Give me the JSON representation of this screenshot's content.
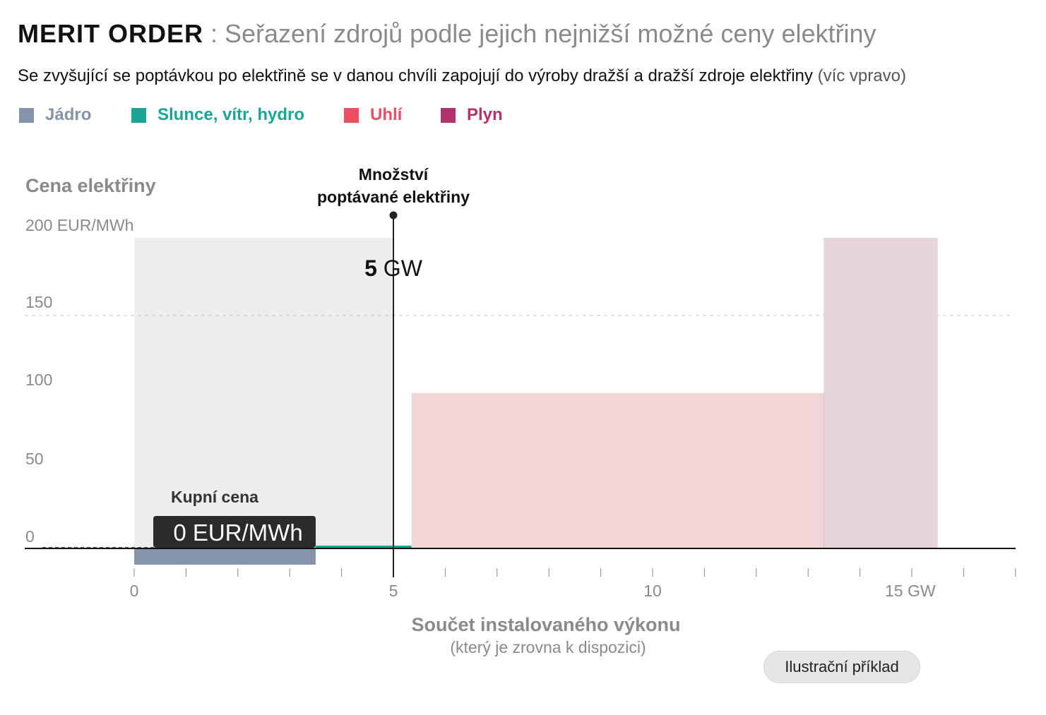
{
  "header": {
    "title": "MERIT ORDER",
    "separator": " : ",
    "subtitle": "Seřazení zdrojů podle jejich nejnižší možné ceny elektřiny"
  },
  "description": {
    "text": "Se zvyšující se poptávkou po elektřině se v danou chvíli zapojují do výroby dražší a dražší zdroje elektřiny ",
    "note": "(víc vpravo)"
  },
  "legend": [
    {
      "label": "Jádro",
      "color": "#8594aa"
    },
    {
      "label": "Slunce, vítr, hydro",
      "color": "#1aa595"
    },
    {
      "label": "Uhlí",
      "color": "#ee4d64"
    },
    {
      "label": "Plyn",
      "color": "#b5316d"
    }
  ],
  "badge": "Ilustrační příklad",
  "chart_data": {
    "type": "bar",
    "variant": "merit-order step chart (bar width = capacity in GW, bar height = price in EUR/MWh)",
    "ylabel": "Cena elektřiny",
    "xlabel": "Součet instalovaného výkonu",
    "xlabel_sub": "(který je zrovna k dispozici)",
    "ylim": [
      -5,
      200
    ],
    "xlim": [
      -2.1,
      17
    ],
    "y_ticks": [
      {
        "value": 200,
        "label": "200 EUR/MWh"
      },
      {
        "value": 150,
        "label": "150"
      },
      {
        "value": 100,
        "label": "100"
      },
      {
        "value": 50,
        "label": "50"
      },
      {
        "value": 0,
        "label": "0"
      }
    ],
    "x_ticks_major": [
      {
        "value": 0,
        "label": "0"
      },
      {
        "value": 5,
        "label": "5"
      },
      {
        "value": 10,
        "label": "10"
      },
      {
        "value": 15,
        "label": "15 GW"
      }
    ],
    "x_ticks_minor": [
      1,
      2,
      3,
      4,
      6,
      7,
      8,
      9,
      11,
      12,
      13,
      14,
      16,
      17
    ],
    "gridlines_dashed": [
      0,
      150
    ],
    "series": [
      {
        "name": "Jádro",
        "x0": 0,
        "x1": 3.5,
        "price": -10,
        "color": "#8594aa"
      },
      {
        "name": "Slunce, vítr, hydro",
        "x0": 3.5,
        "x1": 5.35,
        "price": 1,
        "color": "#1aa595"
      },
      {
        "name": "Uhlí",
        "x0": 5.35,
        "x1": 13.3,
        "price": 100,
        "color": "#ee4d64"
      },
      {
        "name": "Plyn",
        "x0": 13.3,
        "x1": 15.5,
        "price": 200,
        "color": "#b5316d"
      }
    ],
    "demand": {
      "value": 5,
      "label_line1": "Množství",
      "label_line2": "poptávané elektřiny",
      "value_text": "5",
      "unit_text": " GW"
    },
    "clearing_price": {
      "label": "Kupní cena",
      "value": 0,
      "value_text": "0 EUR/MWh"
    }
  }
}
